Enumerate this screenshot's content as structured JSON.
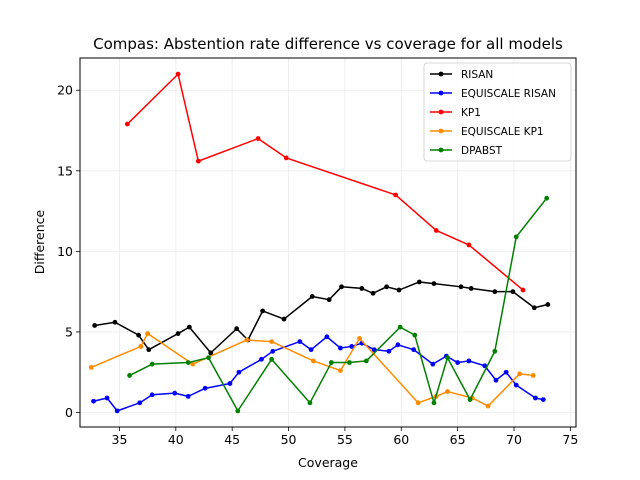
{
  "chart_data": {
    "type": "line",
    "title": "Compas: Abstention rate difference vs coverage for all models",
    "xlabel": "Coverage",
    "ylabel": "Difference",
    "xlim": [
      31.5,
      75.5
    ],
    "ylim": [
      -0.9,
      22
    ],
    "xticks": [
      35,
      40,
      45,
      50,
      55,
      60,
      65,
      70,
      75
    ],
    "yticks": [
      0,
      5,
      10,
      15,
      20
    ],
    "grid": true,
    "legend_position": "top-right",
    "series": [
      {
        "name": "RISAN",
        "color": "#000000",
        "x": [
          32.8,
          34.6,
          36.7,
          37.6,
          40.2,
          41.2,
          43.1,
          45.4,
          46.4,
          47.7,
          49.6,
          52.1,
          53.6,
          54.7,
          56.5,
          57.5,
          58.7,
          59.8,
          61.6,
          62.9,
          65.3,
          66.2,
          68.3,
          69.9,
          71.8,
          73.0
        ],
        "y": [
          5.4,
          5.6,
          4.8,
          3.9,
          4.9,
          5.3,
          3.7,
          5.2,
          4.5,
          6.3,
          5.8,
          7.2,
          7.0,
          7.8,
          7.7,
          7.4,
          7.8,
          7.6,
          8.1,
          8.0,
          7.8,
          7.7,
          7.5,
          7.5,
          6.5,
          6.7
        ]
      },
      {
        "name": "EQUISCALE RISAN",
        "color": "#0000ff",
        "x": [
          32.7,
          33.9,
          34.8,
          36.8,
          37.9,
          39.9,
          41.1,
          42.6,
          44.8,
          45.6,
          47.6,
          48.6,
          51.0,
          52.0,
          53.4,
          54.6,
          55.6,
          56.5,
          57.6,
          58.9,
          59.7,
          61.1,
          62.8,
          64.0,
          65.0,
          66.0,
          67.4,
          68.4,
          69.3,
          70.2,
          71.9,
          72.6
        ],
        "y": [
          0.7,
          0.9,
          0.1,
          0.6,
          1.1,
          1.2,
          1.0,
          1.5,
          1.8,
          2.5,
          3.3,
          3.8,
          4.4,
          3.9,
          4.7,
          4.0,
          4.1,
          4.3,
          3.9,
          3.8,
          4.2,
          3.9,
          3.0,
          3.5,
          3.1,
          3.2,
          2.9,
          2.0,
          2.5,
          1.7,
          0.9,
          0.8
        ]
      },
      {
        "name": "KP1",
        "color": "#ff0000",
        "x": [
          35.7,
          40.2,
          42.0,
          47.3,
          49.8,
          59.5,
          63.1,
          66.0,
          70.8
        ],
        "y": [
          17.9,
          21.0,
          15.6,
          17.0,
          15.8,
          13.5,
          11.3,
          10.4,
          7.6
        ]
      },
      {
        "name": "EQUISCALE KP1",
        "color": "#ff8c00",
        "x": [
          32.5,
          36.9,
          37.5,
          41.5,
          46.3,
          48.5,
          52.2,
          54.6,
          56.3,
          61.5,
          63.1,
          64.1,
          66.3,
          67.7,
          70.5,
          71.7
        ],
        "y": [
          2.8,
          4.1,
          4.9,
          3.0,
          4.5,
          4.4,
          3.2,
          2.6,
          4.6,
          0.6,
          1.0,
          1.3,
          0.9,
          0.4,
          2.4,
          2.3
        ]
      },
      {
        "name": "DPABST",
        "color": "#008000",
        "x": [
          35.9,
          37.9,
          41.1,
          42.9,
          45.5,
          48.5,
          51.9,
          53.8,
          55.4,
          56.9,
          59.9,
          61.2,
          62.9,
          64.1,
          66.1,
          68.3,
          70.2,
          72.9
        ],
        "y": [
          2.3,
          3.0,
          3.1,
          3.4,
          0.1,
          3.3,
          0.6,
          3.1,
          3.1,
          3.2,
          5.3,
          4.8,
          0.6,
          3.4,
          0.8,
          3.8,
          10.9,
          13.3
        ]
      }
    ]
  }
}
